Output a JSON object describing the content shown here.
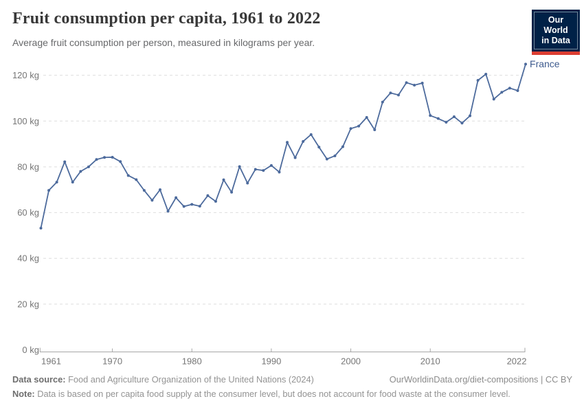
{
  "header": {
    "title": "Fruit consumption per capita, 1961 to 2022",
    "subtitle": "Average fruit consumption per person, measured in kilograms per year."
  },
  "logo": {
    "line1": "Our World",
    "line2": "in Data"
  },
  "chart_data": {
    "type": "line",
    "title": "Fruit consumption per capita, 1961 to 2022",
    "xlabel": "",
    "ylabel": "kilograms per year",
    "unit": "kg",
    "xlim": [
      1961,
      2022
    ],
    "ylim": [
      0,
      128
    ],
    "grid": "horizontal-dashed",
    "legend_position": "end-of-line-label",
    "x_ticks": [
      1961,
      1970,
      1980,
      1990,
      2000,
      2010,
      2022
    ],
    "y_ticks": [
      0,
      20,
      40,
      60,
      80,
      100,
      120
    ],
    "y_tick_suffix": " kg",
    "x": [
      1961,
      1962,
      1963,
      1964,
      1965,
      1966,
      1967,
      1968,
      1969,
      1970,
      1971,
      1972,
      1973,
      1974,
      1975,
      1976,
      1977,
      1978,
      1979,
      1980,
      1981,
      1982,
      1983,
      1984,
      1985,
      1986,
      1987,
      1988,
      1989,
      1990,
      1991,
      1992,
      1993,
      1994,
      1995,
      1996,
      1997,
      1998,
      1999,
      2000,
      2001,
      2002,
      2003,
      2004,
      2005,
      2006,
      2007,
      2008,
      2009,
      2010,
      2011,
      2012,
      2013,
      2014,
      2015,
      2016,
      2017,
      2018,
      2019,
      2020,
      2021,
      2022
    ],
    "series": [
      {
        "name": "France",
        "color": "#4c6a9c",
        "label_color": "#3d5a8e",
        "values": [
          53.2,
          69.7,
          73.3,
          82.2,
          73.3,
          78.0,
          80.0,
          83.2,
          84.1,
          84.2,
          82.3,
          76.2,
          74.4,
          69.7,
          65.4,
          70.0,
          60.6,
          66.5,
          62.7,
          63.6,
          62.8,
          67.4,
          64.9,
          74.3,
          68.9,
          80.1,
          72.9,
          78.9,
          78.4,
          80.6,
          77.7,
          90.7,
          84.0,
          91.1,
          94.1,
          88.6,
          83.4,
          84.8,
          88.8,
          96.7,
          97.8,
          101.6,
          96.2,
          108.3,
          112.3,
          111.4,
          116.8,
          115.7,
          116.6,
          102.4,
          101.1,
          99.5,
          101.9,
          99.1,
          102.3,
          117.8,
          120.5,
          109.6,
          112.6,
          114.4,
          113.3,
          124.9
        ]
      }
    ]
  },
  "footer": {
    "source_label": "Data source:",
    "source_text": " Food and Agriculture Organization of the United Nations (2024)",
    "link": "OurWorldinData.org/diet-compositions | CC BY",
    "note_label": "Note:",
    "note_text": " Data is based on per capita food supply at the consumer level, but does not account for food waste at the consumer level."
  },
  "colors": {
    "line": "#4c6a9c",
    "logo_background": "#002147",
    "logo_bar": "#dc3e32",
    "gridline": "#dedede",
    "axis": "#a6a6a6"
  }
}
